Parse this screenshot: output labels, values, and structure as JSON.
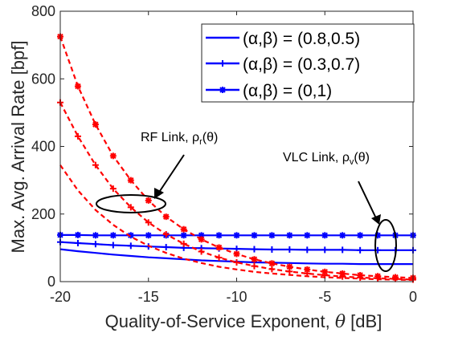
{
  "chart_data": {
    "type": "line",
    "xlabel_main": "Quality-of-Service Exponent, ",
    "xlabel_symbol": "θ",
    "xlabel_unit": " [dB]",
    "ylabel": "Max. Avg. Arrival Rate [bpf]",
    "xlim": [
      -20,
      0
    ],
    "ylim": [
      0,
      800
    ],
    "xticks": [
      -20,
      -15,
      -10,
      -5,
      0
    ],
    "yticks": [
      0,
      200,
      400,
      600,
      800
    ],
    "grid": false,
    "legend_position": "top-right",
    "colors": {
      "vlc": "#0000ff",
      "rf": "#ff0000",
      "axis": "#262626"
    },
    "legend": [
      {
        "label": "(α,β) = (0.8,0.5)",
        "marker": "none"
      },
      {
        "label": "(α,β) = (0.3,0.7)",
        "marker": "plus"
      },
      {
        "label": "(α,β) = (0,1)",
        "marker": "star"
      }
    ],
    "annotations": [
      {
        "text": "RF Link, ρ",
        "sub": "r",
        "tail": "(θ)"
      },
      {
        "text": "VLC Link, ρ",
        "sub": "v",
        "tail": "(θ)"
      }
    ],
    "series": [
      {
        "link": "VLC",
        "marker": "none",
        "style": "solid",
        "x": [
          -20,
          -19,
          -18,
          -17,
          -16,
          -15,
          -14,
          -13,
          -12,
          -11,
          -10,
          -9,
          -8,
          -7,
          -6,
          -5,
          -4,
          -3,
          -2,
          -1,
          0
        ],
        "y": [
          96,
          90,
          85,
          80,
          76,
          72,
          69,
          66,
          63,
          61,
          59,
          57,
          56,
          55,
          54,
          53,
          53,
          52,
          52,
          52,
          52
        ]
      },
      {
        "link": "VLC",
        "marker": "plus",
        "style": "solid",
        "x": [
          -20,
          -19,
          -18,
          -17,
          -16,
          -15,
          -14,
          -13,
          -12,
          -11,
          -10,
          -9,
          -8,
          -7,
          -6,
          -5,
          -4,
          -3,
          -2,
          -1,
          0
        ],
        "y": [
          117,
          114,
          111,
          108,
          106,
          104,
          102,
          100,
          99,
          98,
          97,
          96,
          95,
          95,
          94,
          94,
          94,
          93,
          93,
          93,
          93
        ]
      },
      {
        "link": "VLC",
        "marker": "star",
        "style": "solid",
        "x": [
          -20,
          -19,
          -18,
          -17,
          -16,
          -15,
          -14,
          -13,
          -12,
          -11,
          -10,
          -9,
          -8,
          -7,
          -6,
          -5,
          -4,
          -3,
          -2,
          -1,
          0
        ],
        "y": [
          138,
          138,
          137,
          137,
          137,
          137,
          137,
          137,
          137,
          137,
          137,
          137,
          137,
          137,
          137,
          137,
          137,
          137,
          137,
          137,
          137
        ]
      },
      {
        "link": "RF",
        "marker": "none",
        "style": "dashed",
        "x": [
          -20,
          -19,
          -18,
          -17,
          -16,
          -15,
          -14,
          -13,
          -12,
          -11,
          -10,
          -9,
          -8,
          -7,
          -6,
          -5,
          -4,
          -3,
          -2,
          -1,
          0
        ],
        "y": [
          345,
          270,
          212,
          168,
          133,
          106,
          85,
          68,
          55,
          44,
          36,
          29,
          24,
          20,
          16,
          13,
          11,
          9,
          7,
          6,
          5
        ]
      },
      {
        "link": "RF",
        "marker": "plus",
        "style": "dashed",
        "x": [
          -20,
          -19,
          -18,
          -17,
          -16,
          -15,
          -14,
          -13,
          -12,
          -11,
          -10,
          -9,
          -8,
          -7,
          -6,
          -5,
          -4,
          -3,
          -2,
          -1,
          0
        ],
        "y": [
          530,
          430,
          345,
          275,
          220,
          175,
          140,
          112,
          89,
          71,
          57,
          46,
          37,
          30,
          24,
          19,
          15,
          12,
          10,
          8,
          6
        ]
      },
      {
        "link": "RF",
        "marker": "star",
        "style": "dashed",
        "x": [
          -20,
          -19,
          -18,
          -17,
          -16,
          -15,
          -14,
          -13,
          -12,
          -11,
          -10,
          -9,
          -8,
          -7,
          -6,
          -5,
          -4,
          -3,
          -2,
          -1,
          0
        ],
        "y": [
          725,
          578,
          465,
          372,
          300,
          240,
          192,
          155,
          125,
          101,
          82,
          66,
          54,
          44,
          36,
          29,
          24,
          19,
          16,
          13,
          11
        ]
      }
    ]
  }
}
